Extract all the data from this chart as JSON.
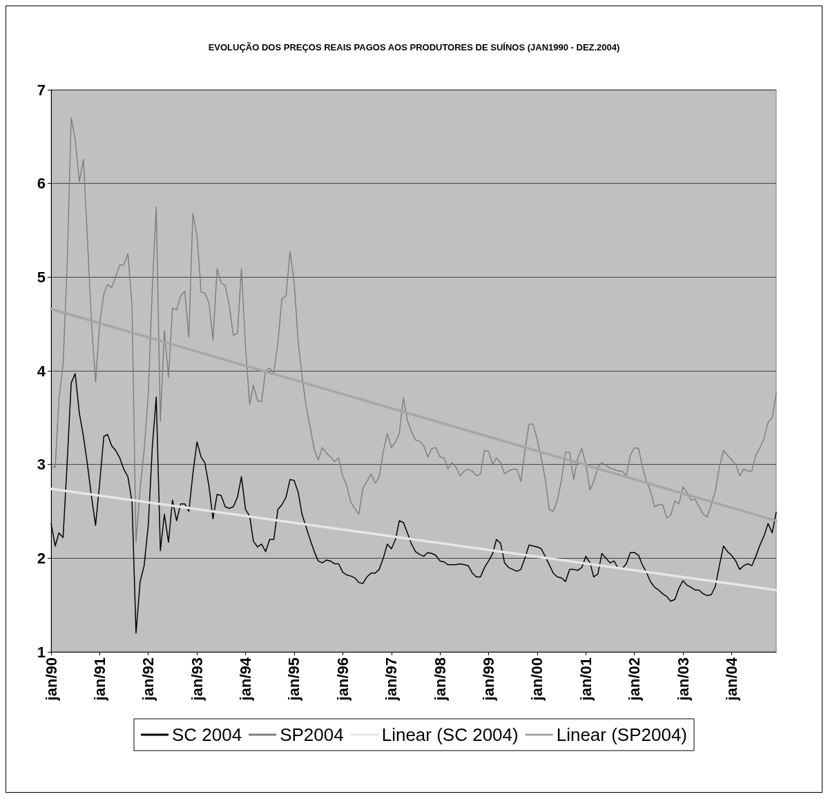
{
  "chart_data": {
    "type": "line",
    "title": "EVOLUÇÃO DOS PREÇOS REAIS PAGOS AOS PRODUTORES DE SUÍNOS (JAN1990 - DEZ.2004)",
    "x": [
      "1990-01",
      "1990-02",
      "1990-03",
      "1990-04",
      "1990-05",
      "1990-06",
      "1990-07",
      "1990-08",
      "1990-09",
      "1990-10",
      "1990-11",
      "1990-12",
      "1991-01",
      "1991-02",
      "1991-03",
      "1991-04",
      "1991-05",
      "1991-06",
      "1991-07",
      "1991-08",
      "1991-09",
      "1991-10",
      "1991-11",
      "1991-12",
      "1992-01",
      "1992-02",
      "1992-03",
      "1992-04",
      "1992-05",
      "1992-06",
      "1992-07",
      "1992-08",
      "1992-09",
      "1992-10",
      "1992-11",
      "1992-12",
      "1993-01",
      "1993-02",
      "1993-03",
      "1993-04",
      "1993-05",
      "1993-06",
      "1993-07",
      "1993-08",
      "1993-09",
      "1993-10",
      "1993-11",
      "1993-12",
      "1994-01",
      "1994-02",
      "1994-03",
      "1994-04",
      "1994-05",
      "1994-06",
      "1994-07",
      "1994-08",
      "1994-09",
      "1994-10",
      "1994-11",
      "1994-12",
      "1995-01",
      "1995-02",
      "1995-03",
      "1995-04",
      "1995-05",
      "1995-06",
      "1995-07",
      "1995-08",
      "1995-09",
      "1995-10",
      "1995-11",
      "1995-12",
      "1996-01",
      "1996-02",
      "1996-03",
      "1996-04",
      "1996-05",
      "1996-06",
      "1996-07",
      "1996-08",
      "1996-09",
      "1996-10",
      "1996-11",
      "1996-12",
      "1997-01",
      "1997-02",
      "1997-03",
      "1997-04",
      "1997-05",
      "1997-06",
      "1997-07",
      "1997-08",
      "1997-09",
      "1997-10",
      "1997-11",
      "1997-12",
      "1998-01",
      "1998-02",
      "1998-03",
      "1998-04",
      "1998-05",
      "1998-06",
      "1998-07",
      "1998-08",
      "1998-09",
      "1998-10",
      "1998-11",
      "1998-12",
      "1999-01",
      "1999-02",
      "1999-03",
      "1999-04",
      "1999-05",
      "1999-06",
      "1999-07",
      "1999-08",
      "1999-09",
      "1999-10",
      "1999-11",
      "1999-12",
      "2000-01",
      "2000-02",
      "2000-03",
      "2000-04",
      "2000-05",
      "2000-06",
      "2000-07",
      "2000-08",
      "2000-09",
      "2000-10",
      "2000-11",
      "2000-12",
      "2001-01",
      "2001-02",
      "2001-03",
      "2001-04",
      "2001-05",
      "2001-06",
      "2001-07",
      "2001-08",
      "2001-09",
      "2001-10",
      "2001-11",
      "2001-12",
      "2002-01",
      "2002-02",
      "2002-03",
      "2002-04",
      "2002-05",
      "2002-06",
      "2002-07",
      "2002-08",
      "2002-09",
      "2002-10",
      "2002-11",
      "2002-12",
      "2003-01",
      "2003-02",
      "2003-03",
      "2003-04",
      "2003-05",
      "2003-06",
      "2003-07",
      "2003-08",
      "2003-09",
      "2003-10",
      "2003-11",
      "2003-12",
      "2004-01",
      "2004-02",
      "2004-03",
      "2004-04",
      "2004-05",
      "2004-06",
      "2004-07",
      "2004-08",
      "2004-09",
      "2004-10",
      "2004-11",
      "2004-12"
    ],
    "series": [
      {
        "name": "SC 2004",
        "color": "#000000",
        "values": [
          2.37,
          2.13,
          2.27,
          2.22,
          3.0,
          3.87,
          3.97,
          3.55,
          3.3,
          3.0,
          2.65,
          2.35,
          2.8,
          3.3,
          3.32,
          3.2,
          3.15,
          3.07,
          2.95,
          2.87,
          2.6,
          1.2,
          1.75,
          1.92,
          2.35,
          3.2,
          3.72,
          2.08,
          2.47,
          2.17,
          2.62,
          2.4,
          2.58,
          2.58,
          2.5,
          2.9,
          3.24,
          3.08,
          3.02,
          2.77,
          2.42,
          2.68,
          2.67,
          2.55,
          2.53,
          2.55,
          2.65,
          2.87,
          2.52,
          2.45,
          2.18,
          2.12,
          2.15,
          2.07,
          2.2,
          2.2,
          2.52,
          2.57,
          2.65,
          2.84,
          2.83,
          2.7,
          2.47,
          2.33,
          2.2,
          2.07,
          1.97,
          1.95,
          1.98,
          1.97,
          1.94,
          1.94,
          1.85,
          1.82,
          1.81,
          1.79,
          1.74,
          1.73,
          1.8,
          1.84,
          1.84,
          1.88,
          2.0,
          2.15,
          2.1,
          2.2,
          2.4,
          2.38,
          2.27,
          2.15,
          2.07,
          2.04,
          2.02,
          2.06,
          2.05,
          2.03,
          1.97,
          1.96,
          1.93,
          1.93,
          1.93,
          1.94,
          1.93,
          1.92,
          1.84,
          1.8,
          1.8,
          1.9,
          1.97,
          2.05,
          2.2,
          2.16,
          1.95,
          1.9,
          1.88,
          1.86,
          1.88,
          2.0,
          2.14,
          2.13,
          2.12,
          2.1,
          2.02,
          1.93,
          1.84,
          1.8,
          1.79,
          1.75,
          1.88,
          1.88,
          1.87,
          1.9,
          2.02,
          1.95,
          1.8,
          1.83,
          2.05,
          2.0,
          1.95,
          1.97,
          1.89,
          1.89,
          1.94,
          2.06,
          2.06,
          2.03,
          1.93,
          1.85,
          1.75,
          1.69,
          1.66,
          1.62,
          1.59,
          1.54,
          1.56,
          1.68,
          1.76,
          1.71,
          1.69,
          1.66,
          1.66,
          1.62,
          1.6,
          1.61,
          1.7,
          1.92,
          2.13,
          2.07,
          2.03,
          1.97,
          1.88,
          1.92,
          1.94,
          1.92,
          2.02,
          2.14,
          2.24,
          2.37,
          2.27,
          2.49
        ]
      },
      {
        "name": "SP2004",
        "color": "#808080",
        "values": [
          2.98,
          2.97,
          3.7,
          4.07,
          5.1,
          6.7,
          6.47,
          6.02,
          6.26,
          5.4,
          4.5,
          3.88,
          4.5,
          4.82,
          4.92,
          4.89,
          5.0,
          5.13,
          5.13,
          5.25,
          4.7,
          2.17,
          2.75,
          3.15,
          3.75,
          4.9,
          5.75,
          3.46,
          4.43,
          3.93,
          4.67,
          4.65,
          4.8,
          4.85,
          4.36,
          5.68,
          5.45,
          4.84,
          4.83,
          4.73,
          4.33,
          5.09,
          4.94,
          4.91,
          4.7,
          4.38,
          4.4,
          5.09,
          4.25,
          3.64,
          3.85,
          3.68,
          3.67,
          4.0,
          4.03,
          3.97,
          4.3,
          4.77,
          4.8,
          5.27,
          4.95,
          4.3,
          3.95,
          3.62,
          3.4,
          3.16,
          3.05,
          3.18,
          3.12,
          3.08,
          3.03,
          3.07,
          2.88,
          2.77,
          2.6,
          2.53,
          2.47,
          2.75,
          2.82,
          2.9,
          2.8,
          2.87,
          3.14,
          3.33,
          3.18,
          3.24,
          3.33,
          3.71,
          3.47,
          3.35,
          3.26,
          3.25,
          3.2,
          3.08,
          3.17,
          3.18,
          3.08,
          3.07,
          2.95,
          3.02,
          2.97,
          2.88,
          2.93,
          2.95,
          2.93,
          2.88,
          2.9,
          3.15,
          3.14,
          3.0,
          3.07,
          3.02,
          2.9,
          2.93,
          2.95,
          2.95,
          2.82,
          3.15,
          3.43,
          3.43,
          3.27,
          3.07,
          2.85,
          2.52,
          2.5,
          2.62,
          2.83,
          3.13,
          3.13,
          2.84,
          3.07,
          3.17,
          3.0,
          2.73,
          2.82,
          2.97,
          3.02,
          2.99,
          2.96,
          2.95,
          2.93,
          2.93,
          2.88,
          3.1,
          3.18,
          3.17,
          2.98,
          2.82,
          2.72,
          2.55,
          2.57,
          2.57,
          2.43,
          2.46,
          2.61,
          2.58,
          2.76,
          2.7,
          2.62,
          2.63,
          2.55,
          2.47,
          2.44,
          2.57,
          2.72,
          2.97,
          3.15,
          3.1,
          3.05,
          3.0,
          2.88,
          2.95,
          2.93,
          2.93,
          3.1,
          3.18,
          3.28,
          3.45,
          3.5,
          3.76
        ]
      },
      {
        "name": "Linear (SC 2004)",
        "color": "#e6e6e6",
        "x": [
          "1990-01",
          "2004-12"
        ],
        "values": [
          2.74,
          1.66
        ]
      },
      {
        "name": "Linear (SP2004)",
        "color": "#a6a6a6",
        "x": [
          "1990-01",
          "2004-12"
        ],
        "values": [
          4.66,
          2.4
        ]
      }
    ],
    "xlim": [
      "1990-01",
      "2004-12"
    ],
    "xticks": [
      {
        "value": "1990-01",
        "label": "jan/90"
      },
      {
        "value": "1991-01",
        "label": "jan/91"
      },
      {
        "value": "1992-01",
        "label": "jan/92"
      },
      {
        "value": "1993-01",
        "label": "jan/93"
      },
      {
        "value": "1994-01",
        "label": "jan/94"
      },
      {
        "value": "1995-01",
        "label": "jan/95"
      },
      {
        "value": "1996-01",
        "label": "jan/96"
      },
      {
        "value": "1997-01",
        "label": "jan/97"
      },
      {
        "value": "1998-01",
        "label": "jan/98"
      },
      {
        "value": "1999-01",
        "label": "jan/99"
      },
      {
        "value": "2000-01",
        "label": "jan/00"
      },
      {
        "value": "2001-01",
        "label": "jan/01"
      },
      {
        "value": "2002-01",
        "label": "jan/02"
      },
      {
        "value": "2003-01",
        "label": "jan/03"
      },
      {
        "value": "2004-01",
        "label": "jan/04"
      }
    ],
    "ylim": [
      1,
      7
    ],
    "yticks": [
      1,
      2,
      3,
      4,
      5,
      6,
      7
    ],
    "grid": "y",
    "legend": "bottom",
    "marker": "none",
    "line_style": "solid"
  }
}
